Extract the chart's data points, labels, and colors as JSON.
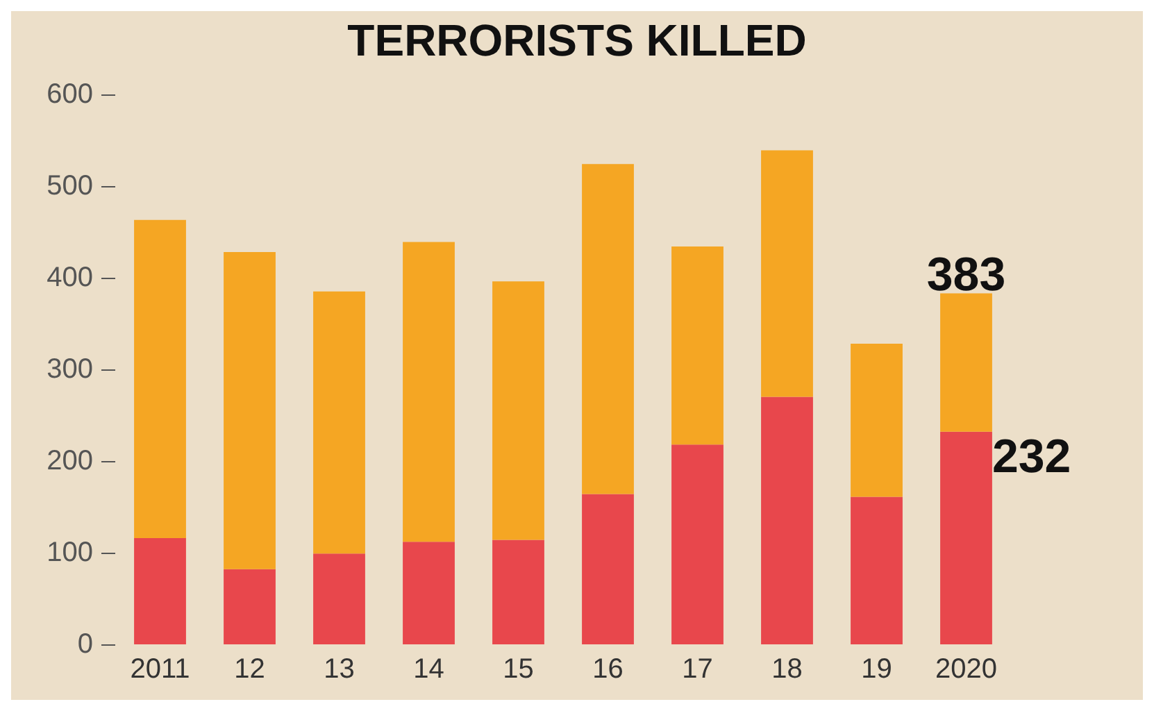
{
  "chart_data": {
    "type": "bar",
    "title": "TERRORISTS KILLED",
    "stacked": true,
    "categories": [
      "2011",
      "12",
      "13",
      "14",
      "15",
      "16",
      "17",
      "18",
      "19",
      "2020"
    ],
    "series": [
      {
        "color": "#e8474c",
        "values": [
          116,
          82,
          99,
          112,
          114,
          164,
          218,
          270,
          161,
          232
        ],
        "value_labels": [
          null,
          null,
          null,
          null,
          null,
          null,
          null,
          null,
          null,
          "232"
        ]
      },
      {
        "color": "#f5a623",
        "values": [
          347,
          346,
          286,
          327,
          282,
          360,
          216,
          269,
          167,
          151
        ]
      }
    ],
    "totals": [
      null,
      null,
      null,
      null,
      null,
      null,
      null,
      null,
      null,
      "383"
    ],
    "ylim": [
      0,
      600
    ],
    "yticks": [
      0,
      100,
      200,
      300,
      400,
      500,
      600
    ],
    "grid": false
  }
}
